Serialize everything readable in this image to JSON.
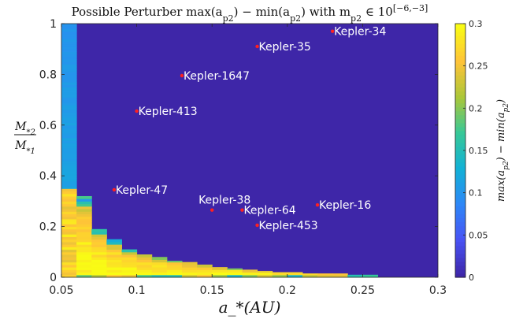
{
  "chart_data": {
    "type": "heatmap",
    "title": "Possible Perturber max(a_{p2}) − min(a_{p2}) with m_{p2} ∈ 10^{[−6,−3]}",
    "xlabel": "a_*(AU)",
    "ylabel_num": "M_{*2}",
    "ylabel_den": "M_{*1}",
    "colorbar_label": "max(a_{p2}) − min(a_{p2})",
    "xlim": [
      0.05,
      0.3
    ],
    "ylim": [
      0,
      1
    ],
    "clim": [
      0,
      0.3
    ],
    "x_ticks": [
      "0.05",
      "0.1",
      "0.15",
      "0.2",
      "0.25",
      "0.3"
    ],
    "y_ticks": [
      "0",
      "0.2",
      "0.4",
      "0.6",
      "0.8",
      "1"
    ],
    "colorbar_ticks": [
      "0",
      "0.05",
      "0.1",
      "0.15",
      "0.2",
      "0.25",
      "0.3"
    ],
    "colormap": "parula",
    "cell_width": 0.01,
    "boundary": [
      {
        "x": 0.05,
        "y_max": 1.0
      },
      {
        "x": 0.06,
        "y_max": 0.32
      },
      {
        "x": 0.07,
        "y_max": 0.19
      },
      {
        "x": 0.08,
        "y_max": 0.15
      },
      {
        "x": 0.09,
        "y_max": 0.11
      },
      {
        "x": 0.1,
        "y_max": 0.09
      },
      {
        "x": 0.11,
        "y_max": 0.08
      },
      {
        "x": 0.12,
        "y_max": 0.065
      },
      {
        "x": 0.13,
        "y_max": 0.06
      },
      {
        "x": 0.14,
        "y_max": 0.05
      },
      {
        "x": 0.15,
        "y_max": 0.04
      },
      {
        "x": 0.16,
        "y_max": 0.035
      },
      {
        "x": 0.17,
        "y_max": 0.03
      },
      {
        "x": 0.18,
        "y_max": 0.025
      },
      {
        "x": 0.19,
        "y_max": 0.02
      },
      {
        "x": 0.2,
        "y_max": 0.02
      },
      {
        "x": 0.21,
        "y_max": 0.015
      },
      {
        "x": 0.22,
        "y_max": 0.015
      },
      {
        "x": 0.23,
        "y_max": 0.015
      },
      {
        "x": 0.24,
        "y_max": 0.01
      },
      {
        "x": 0.25,
        "y_max": 0.01
      }
    ],
    "systems": [
      {
        "name": "Kepler-34",
        "x": 0.23,
        "y": 0.97
      },
      {
        "name": "Kepler-35",
        "x": 0.18,
        "y": 0.91
      },
      {
        "name": "Kepler-1647",
        "x": 0.13,
        "y": 0.795
      },
      {
        "name": "Kepler-413",
        "x": 0.1,
        "y": 0.655
      },
      {
        "name": "Kepler-47",
        "x": 0.085,
        "y": 0.345
      },
      {
        "name": "Kepler-38",
        "x": 0.15,
        "y": 0.265
      },
      {
        "name": "Kepler-64",
        "x": 0.17,
        "y": 0.265
      },
      {
        "name": "Kepler-16",
        "x": 0.22,
        "y": 0.285
      },
      {
        "name": "Kepler-453",
        "x": 0.18,
        "y": 0.205
      }
    ]
  }
}
